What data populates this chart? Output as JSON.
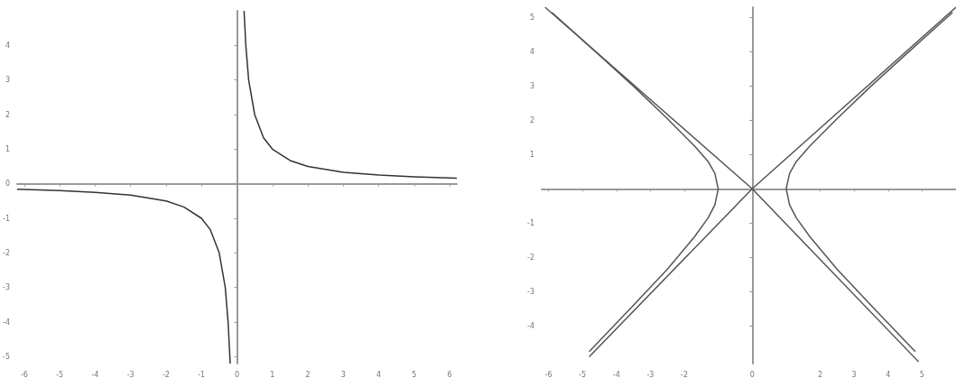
{
  "chart_data": [
    {
      "type": "line",
      "xlim": [
        -6.2,
        6.2
      ],
      "ylim": [
        -5.2,
        5
      ],
      "xticks": [
        -6,
        -5,
        -4,
        -3,
        -2,
        -1,
        0,
        1,
        2,
        3,
        4,
        5,
        6
      ],
      "yticks": [
        -5,
        -4,
        -3,
        -2,
        -1,
        0,
        1,
        2,
        3,
        4
      ],
      "series": [
        {
          "color": "#333333",
          "x": [
            0.2,
            0.25,
            0.33,
            0.5,
            0.75,
            1,
            1.5,
            2,
            3,
            4,
            5,
            6.2
          ],
          "values": [
            5,
            4,
            3,
            2,
            1.33,
            1,
            0.67,
            0.5,
            0.33,
            0.25,
            0.2,
            0.16
          ]
        },
        {
          "color": "#333333",
          "x": [
            -6.2,
            -5,
            -4,
            -3,
            -2,
            -1.5,
            -1,
            -0.75,
            -0.5,
            -0.33,
            -0.25,
            -0.19
          ],
          "values": [
            -0.16,
            -0.2,
            -0.25,
            -0.33,
            -0.5,
            -0.67,
            -1,
            -1.33,
            -2,
            -3,
            -4,
            -5.2
          ]
        }
      ]
    },
    {
      "type": "line",
      "xlim": [
        -6.2,
        6
      ],
      "ylim": [
        -5.1,
        5.3
      ],
      "xticks": [
        -6,
        -5,
        -4,
        -3,
        -2,
        {
          "value": -1,
          "label": null
        },
        0,
        {
          "value": 1,
          "label": null
        },
        2,
        3,
        4,
        5
      ],
      "yticks": [
        -4,
        -3,
        -2,
        -1,
        1,
        2,
        3,
        4,
        5
      ],
      "series": [
        {
          "color": "#555555",
          "x": [
            -6.1,
            0,
            4.9
          ],
          "values": [
            5.3,
            0,
            -5.05
          ]
        },
        {
          "color": "#555555",
          "x": [
            -4.8,
            0,
            6
          ],
          "values": [
            -4.9,
            0,
            5.3
          ]
        },
        {
          "color": "#555555",
          "x": [
            5.9,
            4.5,
            3.5,
            2.5,
            1.7,
            1.3,
            1.1,
            1,
            1.1,
            1.3,
            1.7,
            2.5,
            3.5,
            4.8
          ],
          "values": [
            5.15,
            3.9,
            3,
            2.05,
            1.25,
            0.8,
            0.45,
            0,
            -0.47,
            -0.85,
            -1.4,
            -2.35,
            -3.4,
            -4.75
          ]
        },
        {
          "color": "#555555",
          "x": [
            -5.9,
            -4.5,
            -3.5,
            -2.5,
            -1.7,
            -1.3,
            -1.1,
            -1,
            -1.1,
            -1.3,
            -1.7,
            -2.5,
            -3.5,
            -4.8
          ],
          "values": [
            5.15,
            3.9,
            3,
            2.05,
            1.25,
            0.8,
            0.45,
            0,
            -0.47,
            -0.85,
            -1.4,
            -2.35,
            -3.4,
            -4.75
          ]
        }
      ]
    }
  ]
}
